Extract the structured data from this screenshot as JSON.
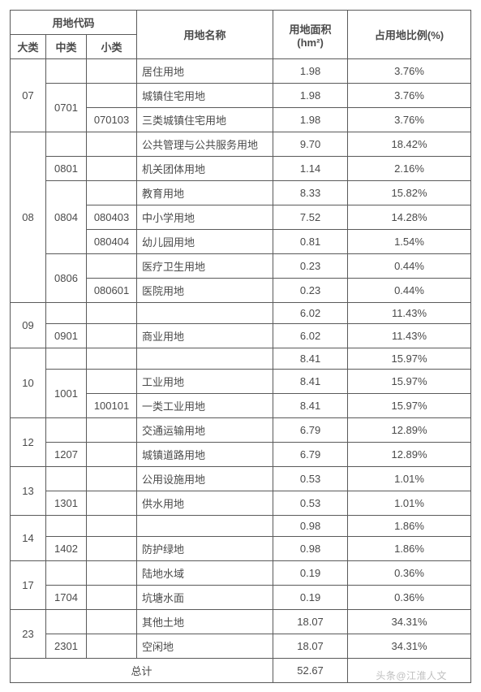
{
  "colors": {
    "border": "#5a5a5a",
    "text": "#4a4a4a",
    "bg": "#ffffff",
    "watermark": "#bfbfbf"
  },
  "header": {
    "code_group": "用地代码",
    "col_a": "大类",
    "col_b": "中类",
    "col_c": "小类",
    "col_d": "用地名称",
    "col_e": "用地面积 (hm²)",
    "col_f": "占用地比例(%)"
  },
  "rows": [
    {
      "a": "07",
      "a_span": 3,
      "b": "",
      "b_span": 1,
      "c": "",
      "name": "居住用地",
      "area": "1.98",
      "ratio": "3.76%"
    },
    {
      "b": "0701",
      "b_span": 2,
      "c": "",
      "name": "城镇住宅用地",
      "area": "1.98",
      "ratio": "3.76%"
    },
    {
      "c": "070103",
      "name": "三类城镇住宅用地",
      "area": "1.98",
      "ratio": "3.76%"
    },
    {
      "a": "08",
      "a_span": 7,
      "b": "",
      "b_span": 1,
      "c": "",
      "name": "公共管理与公共服务用地",
      "area": "9.70",
      "ratio": "18.42%"
    },
    {
      "b": "0801",
      "b_span": 1,
      "c": "",
      "name": "机关团体用地",
      "area": "1.14",
      "ratio": "2.16%"
    },
    {
      "b": "0804",
      "b_span": 3,
      "c": "",
      "name": "教育用地",
      "area": "8.33",
      "ratio": "15.82%"
    },
    {
      "c": "080403",
      "name": "中小学用地",
      "area": "7.52",
      "ratio": "14.28%"
    },
    {
      "c": "080404",
      "name": "幼儿园用地",
      "area": "0.81",
      "ratio": "1.54%"
    },
    {
      "b": "0806",
      "b_span": 2,
      "c": "",
      "name": "医疗卫生用地",
      "area": "0.23",
      "ratio": "0.44%"
    },
    {
      "c": "080601",
      "name": "医院用地",
      "area": "0.23",
      "ratio": "0.44%"
    },
    {
      "a": "09",
      "a_span": 2,
      "b": "",
      "b_span": 1,
      "c": "",
      "name": "",
      "area": "6.02",
      "ratio": "11.43%"
    },
    {
      "b": "0901",
      "b_span": 1,
      "c": "",
      "name": "商业用地",
      "area": "6.02",
      "ratio": "11.43%"
    },
    {
      "a": "10",
      "a_span": 3,
      "b": "",
      "b_span": 1,
      "c": "",
      "name": "",
      "area": "8.41",
      "ratio": "15.97%"
    },
    {
      "b": "1001",
      "b_span": 2,
      "c": "",
      "name": "工业用地",
      "area": "8.41",
      "ratio": "15.97%"
    },
    {
      "c": "100101",
      "name": "一类工业用地",
      "area": "8.41",
      "ratio": "15.97%"
    },
    {
      "a": "12",
      "a_span": 2,
      "b": "",
      "b_span": 1,
      "c": "",
      "name": "交通运输用地",
      "area": "6.79",
      "ratio": "12.89%"
    },
    {
      "b": "1207",
      "b_span": 1,
      "c": "",
      "name": "城镇道路用地",
      "area": "6.79",
      "ratio": "12.89%"
    },
    {
      "a": "13",
      "a_span": 2,
      "b": "",
      "b_span": 1,
      "c": "",
      "name": "公用设施用地",
      "area": "0.53",
      "ratio": "1.01%"
    },
    {
      "b": "1301",
      "b_span": 1,
      "c": "",
      "name": "供水用地",
      "area": "0.53",
      "ratio": "1.01%"
    },
    {
      "a": "14",
      "a_span": 2,
      "b": "",
      "b_span": 1,
      "c": "",
      "name": "",
      "area": "0.98",
      "ratio": "1.86%"
    },
    {
      "b": "1402",
      "b_span": 1,
      "c": "",
      "name": "防护绿地",
      "area": "0.98",
      "ratio": "1.86%"
    },
    {
      "a": "17",
      "a_span": 2,
      "b": "",
      "b_span": 1,
      "c": "",
      "name": "陆地水域",
      "area": "0.19",
      "ratio": "0.36%"
    },
    {
      "b": "1704",
      "b_span": 1,
      "c": "",
      "name": "坑塘水面",
      "area": "0.19",
      "ratio": "0.36%"
    },
    {
      "a": "23",
      "a_span": 2,
      "b": "",
      "b_span": 1,
      "c": "",
      "name": "其他土地",
      "area": "18.07",
      "ratio": "34.31%"
    },
    {
      "b": "2301",
      "b_span": 1,
      "c": "",
      "name": "空闲地",
      "area": "18.07",
      "ratio": "34.31%"
    }
  ],
  "total": {
    "label": "总计",
    "area": "52.67",
    "ratio": ""
  },
  "watermark": "头条@江淮人文"
}
